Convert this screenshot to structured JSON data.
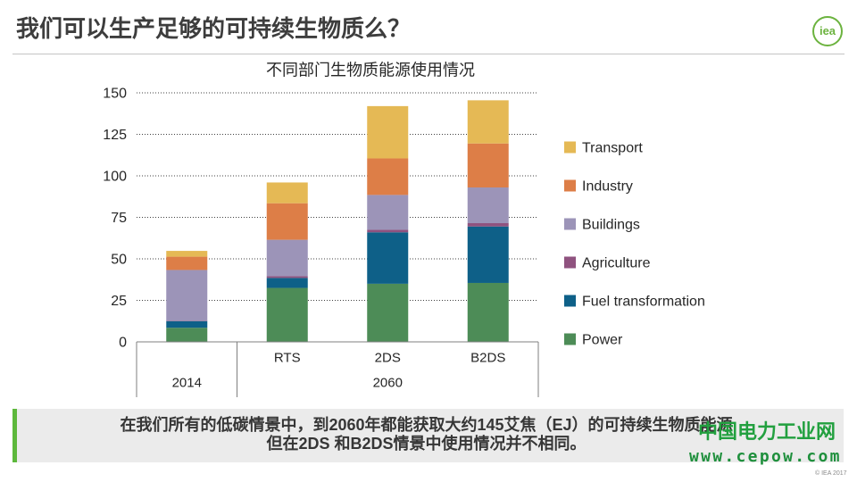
{
  "slide": {
    "title": "我们可以生产足够的可持续生物质么？",
    "logo_text": "iea",
    "copyright": "© IEA 2017"
  },
  "chart_data": {
    "type": "bar",
    "stacked": true,
    "title": "不同部门生物质能源使用情况",
    "category_groups": [
      {
        "label": "2014",
        "categories": [
          ""
        ]
      },
      {
        "label": "2060",
        "categories": [
          "RTS",
          "2DS",
          "B2DS"
        ]
      }
    ],
    "series": [
      {
        "name": "Power",
        "color": "#4d8c57",
        "values": [
          8.5,
          32.5,
          35,
          35.5
        ]
      },
      {
        "name": "Fuel transformation",
        "color": "#0e6088",
        "values": [
          4,
          6,
          31,
          34
        ]
      },
      {
        "name": "Agriculture",
        "color": "#8f527f",
        "values": [
          0.3,
          1,
          1.5,
          2
        ]
      },
      {
        "name": "Buildings",
        "color": "#9c94b8",
        "values": [
          30.5,
          22,
          21,
          21.5
        ]
      },
      {
        "name": "Industry",
        "color": "#dd7e47",
        "values": [
          8,
          22,
          22,
          26.5
        ]
      },
      {
        "name": "Transport",
        "color": "#e5b955",
        "values": [
          3.5,
          12.5,
          31.5,
          26
        ]
      }
    ],
    "ylim": [
      0,
      150
    ],
    "yticks": [
      0,
      25,
      50,
      75,
      100,
      125,
      150
    ],
    "grid": true,
    "legend": "right"
  },
  "banner": {
    "lines": [
      "在我们所有的低碳情景中，到2060年都能获取大约145艾焦（EJ）的可持续生物质能源",
      "但在2DS 和B2DS情景中使用情况并不相同。"
    ],
    "accent_color": "#5db83c"
  },
  "watermark": {
    "site_name": "中国电力工业网",
    "url": "www.cepow.com"
  }
}
